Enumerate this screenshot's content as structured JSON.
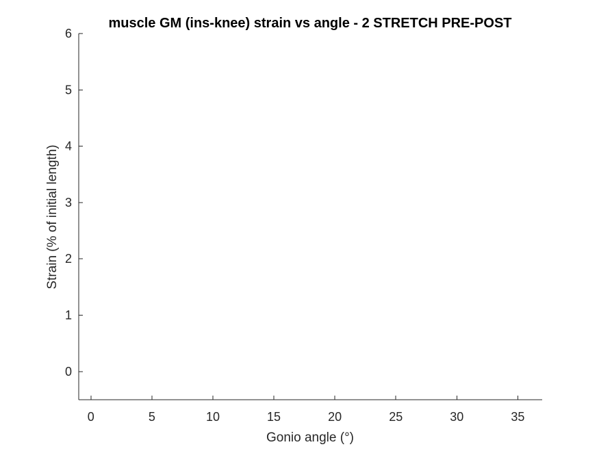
{
  "chart_data": {
    "type": "line",
    "title": "muscle GM (ins-knee) strain vs angle - 2 STRETCH PRE-POST",
    "xlabel": "Gonio angle (°)",
    "ylabel": "Strain (% of initial length)",
    "xlim": [
      -1,
      37
    ],
    "ylim": [
      -0.5,
      6
    ],
    "xticks": [
      0,
      5,
      10,
      15,
      20,
      25,
      30,
      35
    ],
    "yticks": [
      0,
      1,
      2,
      3,
      4,
      5,
      6
    ],
    "grid": false,
    "series": []
  },
  "colors": {
    "axis": "#262626",
    "background": "#ffffff"
  }
}
